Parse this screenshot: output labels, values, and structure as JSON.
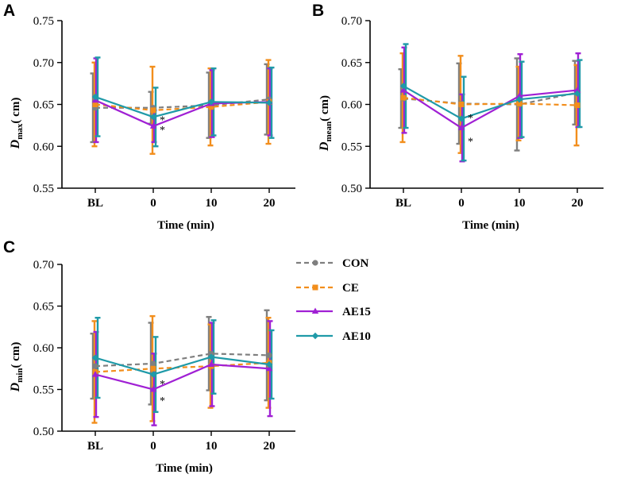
{
  "colors": {
    "CON": "#7f7f7f",
    "CE": "#f28e1c",
    "AE15": "#a020d4",
    "AE10": "#1f9aa8",
    "axis": "#000000"
  },
  "legend": [
    {
      "key": "CON",
      "label": "CON",
      "dash": true,
      "marker": "circle"
    },
    {
      "key": "CE",
      "label": "CE",
      "dash": true,
      "marker": "square"
    },
    {
      "key": "AE15",
      "label": "AE15",
      "dash": false,
      "marker": "triangle"
    },
    {
      "key": "AE10",
      "label": "AE10",
      "dash": false,
      "marker": "diamond"
    }
  ],
  "chart_data": [
    {
      "panel": "A",
      "type": "line",
      "categories": [
        "BL",
        "0",
        "10",
        "20"
      ],
      "xlabel": "Time (min)",
      "ylabel": {
        "main": "D",
        "sub": "max",
        "rest": "( cm)"
      },
      "ylim": [
        0.55,
        0.75
      ],
      "yticks": [
        "0.55",
        "0.60",
        "0.65",
        "0.70",
        "0.75"
      ],
      "series": [
        {
          "name": "CON",
          "values": [
            0.646,
            0.646,
            0.649,
            0.656
          ],
          "err": [
            0.041,
            0.019,
            0.039,
            0.042
          ]
        },
        {
          "name": "CE",
          "values": [
            0.65,
            0.643,
            0.647,
            0.653
          ],
          "err": [
            0.05,
            0.052,
            0.046,
            0.05
          ]
        },
        {
          "name": "AE15",
          "values": [
            0.655,
            0.624,
            0.651,
            0.653
          ],
          "err": [
            0.05,
            0.019,
            0.04,
            0.04
          ]
        },
        {
          "name": "AE10",
          "values": [
            0.659,
            0.635,
            0.653,
            0.652
          ],
          "err": [
            0.047,
            0.035,
            0.04,
            0.042
          ]
        }
      ],
      "annotations": [
        {
          "text": "*",
          "category": "0",
          "value": 0.636
        },
        {
          "text": "*",
          "category": "0",
          "value": 0.624
        }
      ]
    },
    {
      "panel": "B",
      "type": "line",
      "categories": [
        "BL",
        "0",
        "10",
        "20"
      ],
      "xlabel": "Time (min)",
      "ylabel": {
        "main": "D",
        "sub": "mean",
        "rest": "( cm)"
      },
      "ylim": [
        0.5,
        0.7
      ],
      "yticks": [
        "0.50",
        "0.55",
        "0.60",
        "0.65",
        "0.70"
      ],
      "series": [
        {
          "name": "CON",
          "values": [
            0.607,
            0.601,
            0.6,
            0.614
          ],
          "err": [
            0.035,
            0.048,
            0.055,
            0.038
          ]
        },
        {
          "name": "CE",
          "values": [
            0.608,
            0.6,
            0.601,
            0.599
          ],
          "err": [
            0.053,
            0.058,
            0.044,
            0.048
          ]
        },
        {
          "name": "AE15",
          "values": [
            0.617,
            0.572,
            0.61,
            0.617
          ],
          "err": [
            0.051,
            0.04,
            0.05,
            0.044
          ]
        },
        {
          "name": "AE10",
          "values": [
            0.622,
            0.583,
            0.606,
            0.613
          ],
          "err": [
            0.05,
            0.05,
            0.045,
            0.04
          ]
        }
      ],
      "annotations": [
        {
          "text": "*",
          "category": "0",
          "value": 0.588
        },
        {
          "text": "*",
          "category": "0",
          "value": 0.56
        }
      ]
    },
    {
      "panel": "C",
      "type": "line",
      "categories": [
        "BL",
        "0",
        "10",
        "20"
      ],
      "xlabel": "Time (min)",
      "ylabel": {
        "main": "D",
        "sub": "min",
        "rest": "( cm)"
      },
      "ylim": [
        0.5,
        0.7
      ],
      "yticks": [
        "0.50",
        "0.55",
        "0.60",
        "0.65",
        "0.70"
      ],
      "series": [
        {
          "name": "CON",
          "values": [
            0.578,
            0.581,
            0.593,
            0.591
          ],
          "err": [
            0.039,
            0.049,
            0.044,
            0.054
          ]
        },
        {
          "name": "CE",
          "values": [
            0.571,
            0.575,
            0.578,
            0.582
          ],
          "err": [
            0.061,
            0.063,
            0.05,
            0.054
          ]
        },
        {
          "name": "AE15",
          "values": [
            0.568,
            0.55,
            0.58,
            0.575
          ],
          "err": [
            0.051,
            0.043,
            0.05,
            0.057
          ]
        },
        {
          "name": "AE10",
          "values": [
            0.588,
            0.568,
            0.589,
            0.58
          ],
          "err": [
            0.048,
            0.045,
            0.044,
            0.041
          ]
        }
      ],
      "annotations": [
        {
          "text": "*",
          "category": "0",
          "value": 0.561
        },
        {
          "text": "*",
          "category": "0",
          "value": 0.541
        }
      ]
    }
  ]
}
